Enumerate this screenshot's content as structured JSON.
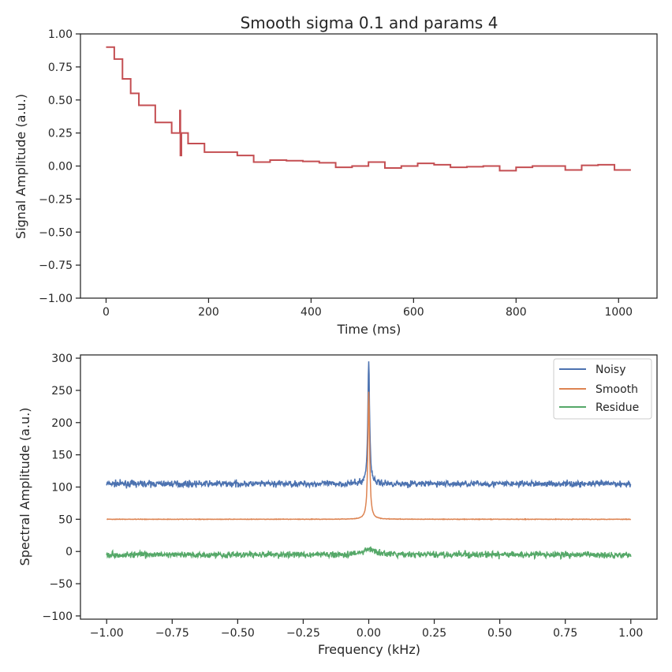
{
  "chart_data": [
    {
      "type": "line",
      "title": "Smooth sigma 0.1 and params 4",
      "xlabel": "Time (ms)",
      "ylabel": "Signal Amplitude (a.u.)",
      "xlim": [
        -50,
        1075
      ],
      "ylim": [
        -1.0,
        1.0
      ],
      "xticks": [
        0,
        200,
        400,
        600,
        800,
        1000
      ],
      "xtick_labels": [
        "0",
        "200",
        "400",
        "600",
        "800",
        "1000"
      ],
      "yticks": [
        1.0,
        0.75,
        0.5,
        0.25,
        0.0,
        -0.25,
        -0.5,
        -0.75,
        -1.0
      ],
      "ytick_labels": [
        "1.00",
        "0.75",
        "0.50",
        "0.25",
        "0.00",
        "−0.25",
        "−0.50",
        "−0.75",
        "−1.00"
      ],
      "grid": false,
      "series": [
        {
          "color": "#c44e52",
          "steps": [
            [
              0,
              0.9
            ],
            [
              16,
              0.81
            ],
            [
              32,
              0.66
            ],
            [
              48,
              0.55
            ],
            [
              64,
              0.46
            ],
            [
              96,
              0.33
            ],
            [
              128,
              0.25
            ],
            [
              144,
              0.42
            ],
            [
              145,
              0.08
            ],
            [
              147,
              0.25
            ],
            [
              160,
              0.17
            ],
            [
              192,
              0.105
            ],
            [
              256,
              0.08
            ],
            [
              288,
              0.03
            ],
            [
              320,
              0.045
            ],
            [
              352,
              0.04
            ],
            [
              384,
              0.035
            ],
            [
              416,
              0.025
            ],
            [
              448,
              -0.01
            ],
            [
              480,
              0.0
            ],
            [
              512,
              0.03
            ],
            [
              544,
              -0.015
            ],
            [
              576,
              0.0
            ],
            [
              608,
              0.02
            ],
            [
              640,
              0.01
            ],
            [
              672,
              -0.01
            ],
            [
              704,
              -0.005
            ],
            [
              736,
              0.0
            ],
            [
              768,
              -0.035
            ],
            [
              800,
              -0.01
            ],
            [
              832,
              0.0
            ],
            [
              864,
              0.0
            ],
            [
              896,
              -0.03
            ],
            [
              928,
              0.005
            ],
            [
              960,
              0.01
            ],
            [
              992,
              -0.03
            ],
            [
              1024,
              -0.03
            ]
          ]
        }
      ]
    },
    {
      "type": "line",
      "xlabel": "Frequency (kHz)",
      "ylabel": "Spectral Amplitude (a.u.)",
      "xlim": [
        -1.1,
        1.1
      ],
      "ylim": [
        -105,
        305
      ],
      "xticks": [
        -1.0,
        -0.75,
        -0.5,
        -0.25,
        0.0,
        0.25,
        0.5,
        0.75,
        1.0
      ],
      "xtick_labels": [
        "−1.00",
        "−0.75",
        "−0.50",
        "−0.25",
        "0.00",
        "0.25",
        "0.50",
        "0.75",
        "1.00"
      ],
      "yticks": [
        300,
        250,
        200,
        150,
        100,
        50,
        0,
        -50,
        -100
      ],
      "ytick_labels": [
        "300",
        "250",
        "200",
        "150",
        "100",
        "50",
        "0",
        "−50",
        "−100"
      ],
      "grid": false,
      "legend": "top-right",
      "series": [
        {
          "name": "Noisy",
          "color": "#4c72b0",
          "baseline": 105,
          "noise": 3.5,
          "peak": 192,
          "peak_width": 0.004
        },
        {
          "name": "Smooth",
          "color": "#dd8452",
          "baseline": 50,
          "noise": 0.3,
          "peak": 198,
          "peak_width": 0.004
        },
        {
          "name": "Residue",
          "color": "#55a868",
          "baseline": -5,
          "noise": 3.5,
          "peak": 8,
          "peak_width": 0.03
        }
      ]
    }
  ]
}
